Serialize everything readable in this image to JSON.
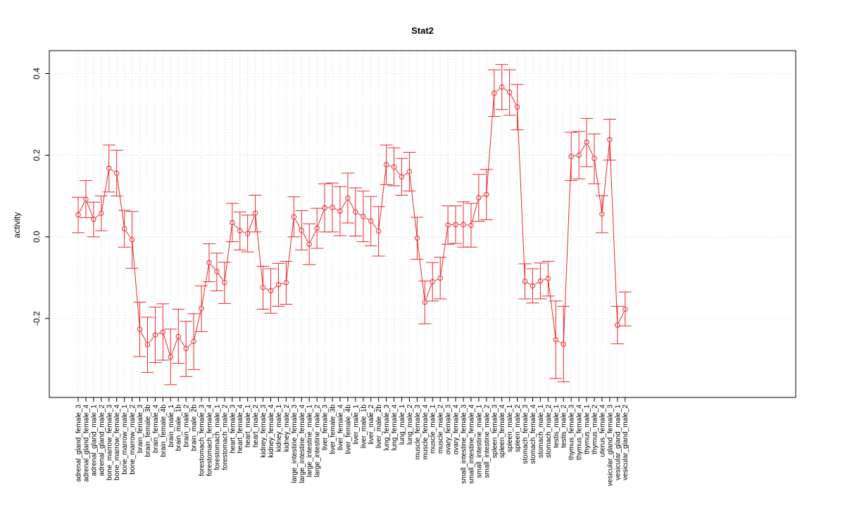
{
  "chart_data": {
    "type": "line",
    "title": "Stat2",
    "xlabel": "",
    "ylabel": "activity",
    "ylim": [
      -0.4,
      0.46
    ],
    "yticks": [
      -0.2,
      0.0,
      0.2,
      0.4
    ],
    "ytick_labels": [
      "-0.2",
      "0.0",
      "0.2",
      "0.4"
    ],
    "grid": true,
    "line_color": "#e8282b",
    "grid_color": "#cccccc",
    "categories": [
      "adrenal_gland_female_3",
      "adrenal_gland_female_4",
      "adrenal_gland_male_1",
      "adrenal_gland_male_2",
      "bone_marrow_female_3",
      "bone_marrow_female_4",
      "bone_marrow_male_1",
      "bone_marrow_male_2",
      "brain_female_3",
      "brain_female_3b",
      "brain_female_4",
      "brain_female_4b",
      "brain_male_1",
      "brain_male_1b",
      "brain_male_2",
      "brain_male_2b",
      "forestomach_female_3",
      "forestomach_female_4",
      "forestomach_male_1",
      "forestomach_male_2",
      "heart_female_3",
      "heart_female_4",
      "heart_male_1",
      "heart_male_2",
      "kidney_female_3",
      "kidney_female_4",
      "kidney_male_1",
      "kidney_male_2",
      "large_intestine_female_3",
      "large_intestine_female_4",
      "large_intestine_male_1",
      "large_intestine_male_2",
      "liver_female_3",
      "liver_female_3b",
      "liver_female_4",
      "liver_female_4b",
      "liver_male_1",
      "liver_male_1b",
      "liver_male_2",
      "liver_male_2b",
      "lung_female_3",
      "lung_female_4",
      "lung_male_1",
      "lung_male_2",
      "muscle_female_3",
      "muscle_female_4",
      "muscle_male_1",
      "muscle_male_2",
      "ovary_female_3",
      "ovary_female_4",
      "small_intestine_female_3",
      "small_intestine_female_4",
      "small_intestine_male_1",
      "small_intestine_male_2",
      "spleen_female_3",
      "spleen_female_4",
      "spleen_male_1",
      "spleen_male_2",
      "stomach_female_3",
      "stomach_female_4",
      "stomach_male_1",
      "stomach_male_2",
      "testis_male_1",
      "testis_male_2",
      "thymus_female_3",
      "thymus_female_4",
      "thymus_male_1",
      "thymus_male_2",
      "uterus_female_4",
      "vesicular_gland_female_3",
      "vesicular_gland_male_1",
      "vesicular_gland_male_2"
    ],
    "values": [
      0.054,
      0.092,
      0.043,
      0.058,
      0.168,
      0.156,
      0.02,
      -0.007,
      -0.226,
      -0.264,
      -0.24,
      -0.233,
      -0.294,
      -0.244,
      -0.274,
      -0.256,
      -0.175,
      -0.063,
      -0.085,
      -0.112,
      0.035,
      0.015,
      0.008,
      0.058,
      -0.124,
      -0.132,
      -0.117,
      -0.112,
      0.049,
      0.016,
      -0.018,
      0.021,
      0.071,
      0.072,
      0.063,
      0.095,
      0.061,
      0.05,
      0.039,
      0.014,
      0.177,
      0.171,
      0.147,
      0.16,
      -0.003,
      -0.16,
      -0.11,
      -0.101,
      0.029,
      0.03,
      0.03,
      0.028,
      0.096,
      0.104,
      0.352,
      0.367,
      0.354,
      0.318,
      -0.109,
      -0.12,
      -0.108,
      -0.102,
      -0.252,
      -0.263,
      0.197,
      0.2,
      0.232,
      0.192,
      0.056,
      0.238,
      -0.216,
      -0.177
    ],
    "error_low": [
      0.01,
      0.047,
      0.0,
      0.015,
      0.11,
      0.1,
      -0.025,
      -0.077,
      -0.293,
      -0.332,
      -0.308,
      -0.302,
      -0.362,
      -0.31,
      -0.342,
      -0.325,
      -0.232,
      -0.11,
      -0.132,
      -0.163,
      -0.012,
      -0.032,
      -0.037,
      0.012,
      -0.177,
      -0.187,
      -0.17,
      -0.165,
      0.0,
      -0.032,
      -0.068,
      -0.028,
      0.012,
      0.012,
      0.003,
      0.034,
      0.002,
      -0.012,
      -0.022,
      -0.047,
      0.128,
      0.125,
      0.102,
      0.112,
      -0.055,
      -0.213,
      -0.157,
      -0.152,
      -0.018,
      -0.016,
      -0.025,
      -0.025,
      0.038,
      0.042,
      0.295,
      0.312,
      0.298,
      0.262,
      -0.152,
      -0.162,
      -0.152,
      -0.145,
      -0.347,
      -0.355,
      0.138,
      0.142,
      0.172,
      0.13,
      0.01,
      0.188,
      -0.262,
      -0.218
    ],
    "error_high": [
      0.097,
      0.138,
      0.085,
      0.1,
      0.225,
      0.212,
      0.065,
      0.062,
      -0.16,
      -0.197,
      -0.172,
      -0.164,
      -0.226,
      -0.177,
      -0.207,
      -0.188,
      -0.12,
      -0.017,
      -0.04,
      -0.062,
      0.082,
      0.061,
      0.053,
      0.102,
      -0.072,
      -0.078,
      -0.065,
      -0.06,
      0.098,
      0.064,
      0.032,
      0.07,
      0.13,
      0.132,
      0.123,
      0.156,
      0.12,
      0.112,
      0.099,
      0.074,
      0.225,
      0.218,
      0.192,
      0.207,
      0.048,
      -0.108,
      -0.063,
      -0.05,
      0.076,
      0.076,
      0.086,
      0.082,
      0.153,
      0.165,
      0.409,
      0.422,
      0.409,
      0.373,
      -0.066,
      -0.078,
      -0.064,
      -0.06,
      -0.157,
      -0.17,
      0.256,
      0.258,
      0.29,
      0.252,
      0.101,
      0.288,
      -0.17,
      -0.135
    ]
  }
}
